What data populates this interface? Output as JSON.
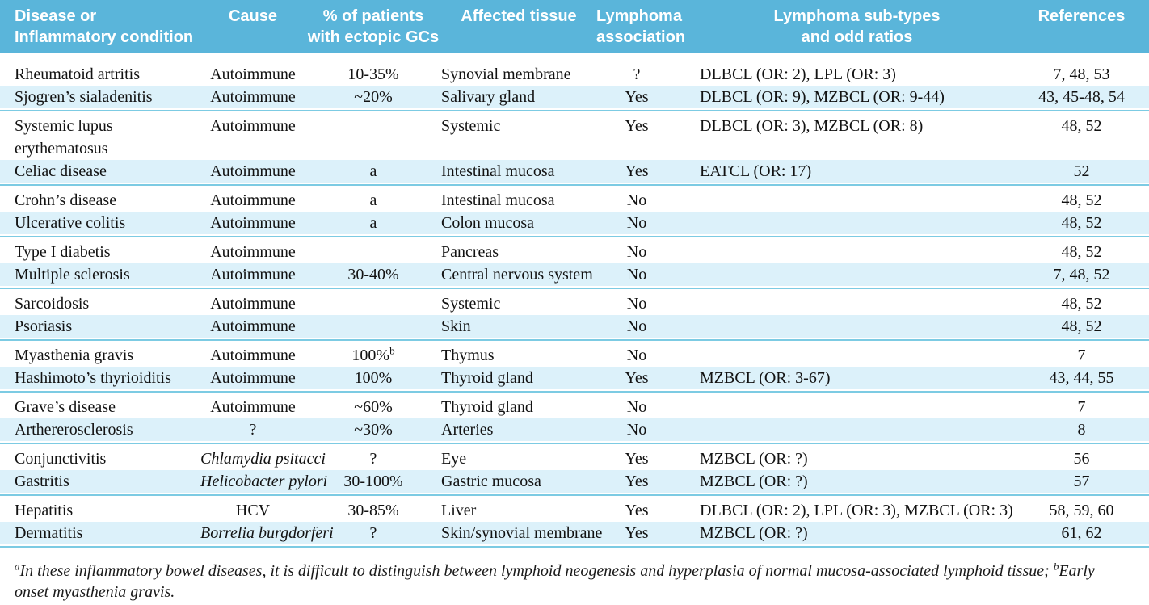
{
  "colors": {
    "header_bg": "#5ab5da",
    "shaded_row_bg": "#dcf1fa",
    "rule": "#7ccbe3",
    "header_text": "#ffffff",
    "body_text": "#121212"
  },
  "header": {
    "columns": [
      {
        "line1": "Disease or",
        "line2": "Inflammatory condition"
      },
      {
        "line1": "Cause",
        "line2": ""
      },
      {
        "line1": "% of patients",
        "line2": "with ectopic GCs"
      },
      {
        "line1": "Affected tissue",
        "line2": ""
      },
      {
        "line1": "Lymphoma",
        "line2": "association"
      },
      {
        "line1": "Lymphoma sub-types",
        "line2": "and odd ratios"
      },
      {
        "line1": "References",
        "line2": ""
      }
    ]
  },
  "table": {
    "groups": [
      {
        "rows": [
          {
            "disease": "Rheumatoid artritis",
            "cause": "Autoimmune",
            "cause_italic": false,
            "pct": "10-35%",
            "pct_sup": "",
            "tissue": "Synovial membrane",
            "assoc": "?",
            "subtypes": "DLBCL (OR: 2), LPL (OR: 3)",
            "refs": "7, 48, 53"
          },
          {
            "disease": "Sjogren’s sialadenitis",
            "cause": "Autoimmune",
            "cause_italic": false,
            "pct": "~20%",
            "pct_sup": "",
            "tissue": "Salivary gland",
            "assoc": "Yes",
            "subtypes": "DLBCL (OR: 9), MZBCL (OR: 9-44)",
            "refs": "43, 45-48, 54"
          }
        ]
      },
      {
        "rows": [
          {
            "disease": "Systemic lupus erythematosus",
            "cause": "Autoimmune",
            "cause_italic": false,
            "pct": "",
            "pct_sup": "",
            "tissue": "Systemic",
            "assoc": "Yes",
            "subtypes": "DLBCL (OR: 3), MZBCL (OR: 8)",
            "refs": "48, 52"
          },
          {
            "disease": "Celiac disease",
            "cause": "Autoimmune",
            "cause_italic": false,
            "pct": "a",
            "pct_sup": "",
            "tissue": "Intestinal mucosa",
            "assoc": "Yes",
            "subtypes": "EATCL (OR: 17)",
            "refs": "52"
          }
        ]
      },
      {
        "rows": [
          {
            "disease": "Crohn’s disease",
            "cause": "Autoimmune",
            "cause_italic": false,
            "pct": "a",
            "pct_sup": "",
            "tissue": "Intestinal mucosa",
            "assoc": "No",
            "subtypes": "",
            "refs": "48, 52"
          },
          {
            "disease": "Ulcerative colitis",
            "cause": "Autoimmune",
            "cause_italic": false,
            "pct": "a",
            "pct_sup": "",
            "tissue": "Colon mucosa",
            "assoc": "No",
            "subtypes": "",
            "refs": "48, 52"
          }
        ]
      },
      {
        "rows": [
          {
            "disease": "Type I diabetis",
            "cause": "Autoimmune",
            "cause_italic": false,
            "pct": "",
            "pct_sup": "",
            "tissue": "Pancreas",
            "assoc": "No",
            "subtypes": "",
            "refs": "48, 52"
          },
          {
            "disease": "Multiple sclerosis",
            "cause": "Autoimmune",
            "cause_italic": false,
            "pct": "30-40%",
            "pct_sup": "",
            "tissue": "Central nervous system",
            "assoc": "No",
            "subtypes": "",
            "refs": "7, 48, 52"
          }
        ]
      },
      {
        "rows": [
          {
            "disease": "Sarcoidosis",
            "cause": "Autoimmune",
            "cause_italic": false,
            "pct": "",
            "pct_sup": "",
            "tissue": "Systemic",
            "assoc": "No",
            "subtypes": "",
            "refs": "48, 52"
          },
          {
            "disease": "Psoriasis",
            "cause": "Autoimmune",
            "cause_italic": false,
            "pct": "",
            "pct_sup": "",
            "tissue": "Skin",
            "assoc": "No",
            "subtypes": "",
            "refs": "48, 52"
          }
        ]
      },
      {
        "rows": [
          {
            "disease": "Myasthenia gravis",
            "cause": "Autoimmune",
            "cause_italic": false,
            "pct": "100%",
            "pct_sup": "b",
            "tissue": "Thymus",
            "assoc": "No",
            "subtypes": "",
            "refs": "7"
          },
          {
            "disease": "Hashimoto’s thyrioiditis",
            "cause": "Autoimmune",
            "cause_italic": false,
            "pct": "100%",
            "pct_sup": "",
            "tissue": "Thyroid gland",
            "assoc": "Yes",
            "subtypes": "MZBCL (OR: 3-67)",
            "refs": "43, 44, 55"
          }
        ]
      },
      {
        "rows": [
          {
            "disease": "Grave’s disease",
            "cause": "Autoimmune",
            "cause_italic": false,
            "pct": "~60%",
            "pct_sup": "",
            "tissue": "Thyroid gland",
            "assoc": "No",
            "subtypes": "",
            "refs": "7"
          },
          {
            "disease": "Arthererosclerosis",
            "cause": "?",
            "cause_italic": false,
            "pct": "~30%",
            "pct_sup": "",
            "tissue": "Arteries",
            "assoc": "No",
            "subtypes": "",
            "refs": "8"
          }
        ]
      },
      {
        "rows": [
          {
            "disease": "Conjunctivitis",
            "cause": "Chlamydia psitacci",
            "cause_italic": true,
            "pct": "?",
            "pct_sup": "",
            "tissue": "Eye",
            "assoc": "Yes",
            "subtypes": "MZBCL (OR: ?)",
            "refs": "56"
          },
          {
            "disease": "Gastritis",
            "cause": "Helicobacter pylori",
            "cause_italic": true,
            "pct": "30-100%",
            "pct_sup": "",
            "tissue": "Gastric mucosa",
            "assoc": "Yes",
            "subtypes": "MZBCL (OR: ?)",
            "refs": "57"
          }
        ]
      },
      {
        "rows": [
          {
            "disease": "Hepatitis",
            "cause": "HCV",
            "cause_italic": false,
            "pct": "30-85%",
            "pct_sup": "",
            "tissue": "Liver",
            "assoc": "Yes",
            "subtypes": "DLBCL (OR: 2), LPL (OR: 3), MZBCL (OR: 3)",
            "refs": "58, 59, 60"
          },
          {
            "disease": "Dermatitis",
            "cause": "Borrelia burgdorferi",
            "cause_italic": true,
            "pct": "?",
            "pct_sup": "",
            "tissue": "Skin/synovial membrane",
            "assoc": "Yes",
            "subtypes": "MZBCL (OR: ?)",
            "refs": "61, 62"
          }
        ]
      }
    ]
  },
  "footnote": {
    "marker_a": "a",
    "text_a": "In these inflammatory bowel diseases, it is difficult to distinguish between lymphoid neogenesis and hyperplasia of normal mucosa-associated lymphoid tissue; ",
    "marker_b": "b",
    "text_b": "Early onset myasthenia gravis."
  }
}
